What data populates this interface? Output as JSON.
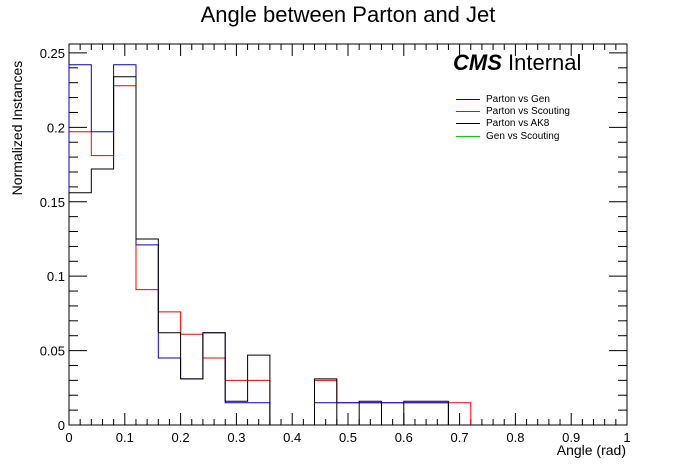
{
  "chart_data": {
    "type": "histogram",
    "title": "Angle between Parton and Jet",
    "xlabel": "Angle (rad)",
    "ylabel": "Normalized Instances",
    "xlim": [
      0,
      1
    ],
    "ylim": [
      0,
      0.256
    ],
    "bin_edges": [
      0,
      0.04,
      0.08,
      0.12,
      0.16,
      0.2,
      0.24,
      0.28,
      0.32,
      0.36,
      0.4,
      0.44,
      0.48,
      0.52,
      0.56,
      0.6,
      0.64,
      0.68,
      0.72
    ],
    "x_ticks": [
      "0",
      "0.1",
      "0.2",
      "0.3",
      "0.4",
      "0.5",
      "0.6",
      "0.7",
      "0.8",
      "0.9",
      "1"
    ],
    "y_ticks": [
      "0",
      "0.05",
      "0.1",
      "0.15",
      "0.2",
      "0.25"
    ],
    "series": [
      {
        "name": "Parton vs Gen",
        "color": "#0000cc",
        "values": [
          0.242,
          0.197,
          0.242,
          0.121,
          0.045,
          0.031,
          0.062,
          0.015,
          0.015,
          0,
          0,
          0.015,
          0.015,
          0.015,
          0.015,
          0.015,
          0.015,
          0
        ]
      },
      {
        "name": "Parton vs Scouting",
        "color": "#ff0000",
        "values": [
          0.197,
          0.181,
          0.228,
          0.091,
          0.076,
          0.061,
          0.045,
          0.03,
          0.03,
          0,
          0,
          0.03,
          0.015,
          0.015,
          0.015,
          0.015,
          0.015,
          0.015
        ]
      },
      {
        "name": "Parton vs AK8",
        "color": "#000000",
        "values": [
          0.156,
          0.172,
          0.234,
          0.125,
          0.062,
          0.031,
          0.062,
          0.016,
          0.047,
          0,
          0,
          0.031,
          0,
          0.016,
          0,
          0.016,
          0.016,
          0
        ]
      },
      {
        "name": "Gen vs Scouting",
        "color": "#00cc00",
        "values": []
      }
    ],
    "legend_position": "top-right",
    "grid": false
  },
  "annotation": {
    "cms": "CMS",
    "internal": "Internal"
  }
}
